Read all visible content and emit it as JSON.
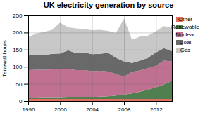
{
  "chart_data": {
    "type": "area",
    "title": "UK electricity generation by source",
    "ylabel": "Terawatt hours",
    "stacked": true,
    "x": [
      1996,
      1997,
      1998,
      1999,
      2000,
      2001,
      2002,
      2003,
      2004,
      2005,
      2006,
      2007,
      2008,
      2009,
      2010,
      2011,
      2012,
      2013,
      2014
    ],
    "series": [
      {
        "name": "Other",
        "color": "#e07060",
        "values": [
          6,
          6,
          6,
          6,
          6,
          6,
          6,
          6,
          6,
          6,
          6,
          6,
          6,
          6,
          6,
          6,
          6,
          6,
          6
        ]
      },
      {
        "name": "Renewable",
        "color": "#508050",
        "values": [
          2,
          2,
          3,
          3,
          3,
          4,
          4,
          5,
          6,
          7,
          8,
          10,
          13,
          16,
          21,
          27,
          34,
          42,
          53
        ]
      },
      {
        "name": "Nuclear",
        "color": "#c07090",
        "values": [
          82,
          83,
          82,
          83,
          83,
          84,
          80,
          79,
          75,
          75,
          72,
          63,
          52,
          63,
          62,
          63,
          63,
          70,
          57
        ]
      },
      {
        "name": "Coal",
        "color": "#696969",
        "values": [
          46,
          43,
          43,
          46,
          47,
          54,
          50,
          52,
          50,
          50,
          55,
          47,
          45,
          26,
          29,
          30,
          39,
          36,
          30
        ]
      },
      {
        "name": "Gas",
        "color": "#c8c8c8",
        "values": [
          50,
          63,
          68,
          70,
          90,
          67,
          72,
          68,
          70,
          70,
          64,
          73,
          125,
          68,
          70,
          65,
          62,
          65,
          68
        ]
      }
    ],
    "xlim": [
      1996,
      2014
    ],
    "xticks": [
      1996,
      2000,
      2004,
      2008,
      2012
    ],
    "ylim": [
      0,
      250
    ],
    "yticks": [
      0,
      50,
      100,
      150,
      200,
      250
    ],
    "grid": true,
    "legend": "upper right"
  }
}
